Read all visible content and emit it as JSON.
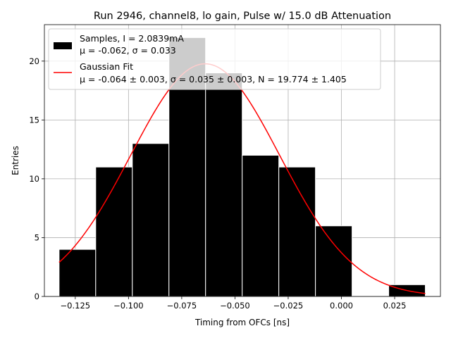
{
  "chart_data": {
    "type": "bar",
    "title": "Run 2946, channel8, lo gain, Pulse w/ 15.0 dB Attenuation",
    "xlabel": "Timing from OFCs [ns]",
    "ylabel": "Entries",
    "xlim": [
      -0.1395,
      0.0465
    ],
    "ylim": [
      0,
      23.1
    ],
    "xticks": [
      -0.125,
      -0.1,
      -0.075,
      -0.05,
      -0.025,
      0.0,
      0.025
    ],
    "xtick_labels": [
      "−0.125",
      "−0.100",
      "−0.075",
      "−0.050",
      "−0.025",
      "0.000",
      "0.025"
    ],
    "yticks": [
      0,
      5,
      10,
      15,
      20
    ],
    "ytick_labels": [
      "0",
      "5",
      "10",
      "15",
      "20"
    ],
    "grid": true,
    "histogram": {
      "name": "Samples, I = 2.0839mA",
      "bin_edges": [
        -0.1326,
        -0.1154,
        -0.0982,
        -0.081,
        -0.0638,
        -0.0466,
        -0.0294,
        -0.0122,
        0.005,
        0.0222,
        0.0394
      ],
      "counts": [
        4,
        11,
        13,
        22,
        19,
        12,
        11,
        6,
        0,
        1
      ],
      "color": "#000000",
      "edge_color": "#ffffff"
    },
    "fit": {
      "name": "Gaussian Fit",
      "mu": -0.064,
      "sigma": 0.035,
      "N": 19.774,
      "x_range": [
        -0.1326,
        0.0394
      ],
      "color": "#ff0000"
    },
    "legend": {
      "position": "upper-left",
      "entries": [
        {
          "line1": "Samples, I = 2.0839mA",
          "line2": "μ = -0.062, σ = 0.033"
        },
        {
          "line1": "Gaussian Fit",
          "line2": "μ = -0.064 ± 0.003, σ = 0.035 ± 0.003, N = 19.774 ± 1.405"
        }
      ]
    }
  }
}
